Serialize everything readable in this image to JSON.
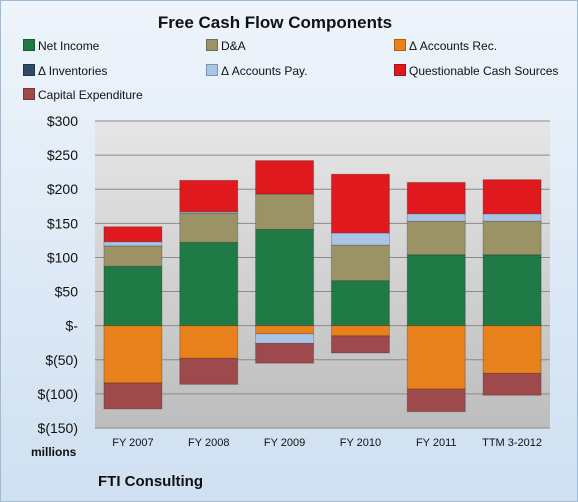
{
  "chart_data": {
    "type": "bar",
    "stacked": true,
    "title": "Free Cash Flow Components",
    "units_label": "millions",
    "company": "FTI Consulting",
    "categories": [
      "FY 2007",
      "FY 2008",
      "FY 2009",
      "FY 2010",
      "FY 2011",
      "TTM 3-2012"
    ],
    "ylim": [
      -150,
      300
    ],
    "yticks": [
      300,
      250,
      200,
      150,
      100,
      50,
      0,
      -50,
      -100,
      -150
    ],
    "ytick_labels": [
      "$300",
      "$250",
      "$200",
      "$150",
      "$100",
      "$50",
      "$-",
      "$(50)",
      "$(100)",
      "$(150)"
    ],
    "grid": true,
    "legend_position": "top",
    "series": [
      {
        "name": "Net Income",
        "color": "#1f7a45",
        "values": [
          87,
          122,
          141,
          66,
          104,
          104
        ]
      },
      {
        "name": "D&A",
        "color": "#9b9366",
        "values": [
          30,
          43,
          52,
          52,
          49,
          49
        ]
      },
      {
        "name": "Δ Accounts Rec.",
        "color": "#e8801c",
        "values": [
          -84,
          -48,
          -12,
          -15,
          -93,
          -70
        ]
      },
      {
        "name": "Δ Inventories",
        "color": "#2e4a66",
        "values": [
          0,
          0,
          0,
          0,
          0,
          0
        ]
      },
      {
        "name": "Δ Accounts Pay.",
        "color": "#a9c4e4",
        "values": [
          6,
          2,
          -14,
          18,
          11,
          11
        ]
      },
      {
        "name": "Questionable Cash Sources",
        "color": "#e0191e",
        "values": [
          22,
          46,
          49,
          86,
          46,
          50
        ]
      },
      {
        "name": "Capital Expenditure",
        "color": "#9e4a4d",
        "values": [
          -38,
          -38,
          -29,
          -25,
          -33,
          -32
        ]
      }
    ]
  }
}
